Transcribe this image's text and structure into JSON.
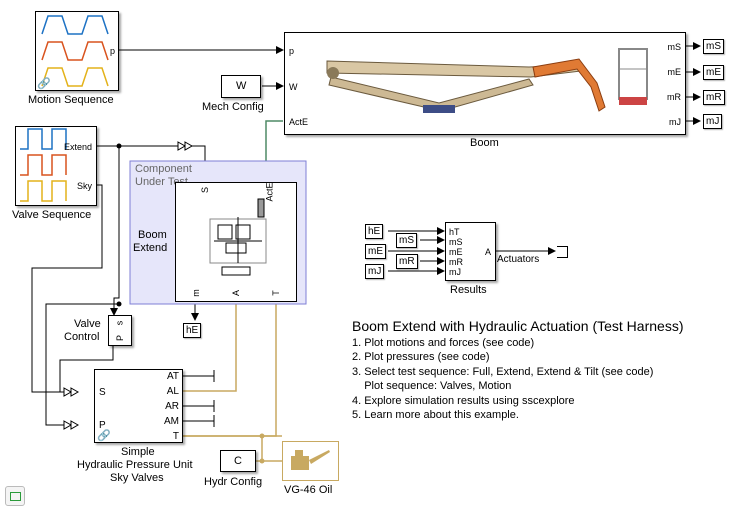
{
  "colors": {
    "signal": "#000000",
    "physical": "#c8a961",
    "mech": "#4f8a66",
    "subsystem_fill": "#e6e6fa",
    "subsystem_border": "#7f7fd6",
    "wave_blue": "#1d72c4",
    "wave_orange": "#d9531e",
    "wave_yellow": "#e3b21a"
  },
  "blocks": {
    "motion_sequence": {
      "label": "Motion Sequence",
      "port_p": "p"
    },
    "mech_config": {
      "label": "Mech Config",
      "glyph": "W"
    },
    "boom": {
      "label": "Boom",
      "in_ports": [
        "p",
        "W",
        "ActE"
      ],
      "out_ports": [
        "mS",
        "mE",
        "mR",
        "mJ"
      ]
    },
    "valve_sequence": {
      "label": "Valve Sequence",
      "ports": [
        "Extend",
        "Sky"
      ]
    },
    "component_under_test": {
      "label": "Component Under Test"
    },
    "boom_extend": {
      "label_line1": "Boom",
      "label_line2": "Extend",
      "top_ports": [
        "S",
        "ActE"
      ],
      "bottom_ports": [
        "m",
        "A",
        "T"
      ]
    },
    "valve_control": {
      "label_line1": "Valve",
      "label_line2": "Control",
      "port_p": "P",
      "port_s": "s"
    },
    "hpu": {
      "label_line1": "Simple",
      "label_line2": "Hydraulic Pressure Unit",
      "label_line3": "Sky Valves",
      "in_ports": [
        "S",
        "P"
      ],
      "out_ports": [
        "AT",
        "AL",
        "AR",
        "AM",
        "T"
      ]
    },
    "hydr_config": {
      "label": "Hydr Config",
      "glyph": "C"
    },
    "oil": {
      "label": "VG-46 Oil"
    },
    "results": {
      "label": "Results",
      "in_ports": [
        "hT",
        "mS",
        "mE",
        "mR",
        "mJ"
      ],
      "out_port": "A",
      "actuators_label": "Actuators"
    }
  },
  "tags": {
    "goto": [
      "mS",
      "mE",
      "mR",
      "mJ"
    ],
    "hE_goto": "hE",
    "from": [
      "hE",
      "mS",
      "mE",
      "mR",
      "mJ"
    ]
  },
  "notes": {
    "title": "Boom Extend with Hydraulic Actuation (Test Harness)",
    "items": [
      "1. Plot motions and forces (see code)",
      "2. Plot pressures (see code)",
      "3. Select test sequence: Full, Extend, Extend & Tilt (see code)",
      "    Plot sequence: Valves, Motion",
      "4. Explore simulation results using sscexplore",
      "5. Learn more about this example."
    ]
  },
  "icons": [
    "link-icon",
    "oil-can-icon",
    "hydraulic-schematic-icon",
    "boom-crane-icon",
    "scope-icon",
    "status-bar-icon"
  ]
}
